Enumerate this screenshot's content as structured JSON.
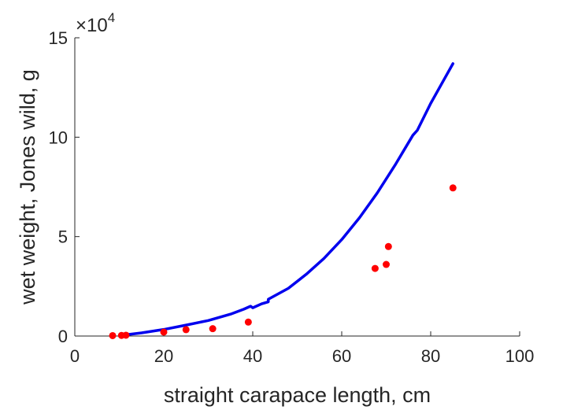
{
  "chart_data": {
    "type": "scatter",
    "xlabel": "straight carapace length, cm",
    "ylabel": "wet weight, Jones wild, g",
    "y_multiplier": "×10",
    "y_multiplier_exponent": "4",
    "xlim": [
      0,
      100
    ],
    "ylim": [
      0,
      15
    ],
    "x_ticks": [
      0,
      20,
      40,
      60,
      80,
      100
    ],
    "y_ticks": [
      0,
      5,
      10,
      15
    ],
    "grid": false,
    "legend": "none",
    "series": [
      {
        "kind": "points",
        "color": "#ff0000",
        "x": [
          8.5,
          10.5,
          11.5,
          20,
          25,
          31,
          39,
          67.5,
          70,
          70.5,
          85
        ],
        "y": [
          0.02,
          0.03,
          0.04,
          0.2,
          0.32,
          0.37,
          0.7,
          3.4,
          3.6,
          4.5,
          7.45
        ]
      },
      {
        "kind": "line",
        "color": "#0000ee",
        "x": [
          11,
          15,
          20,
          25,
          30,
          35,
          38,
          39.5,
          40,
          42,
          43.5,
          43.5,
          48,
          52,
          56,
          60,
          64,
          68,
          72,
          76,
          77,
          80,
          83,
          85
        ],
        "y": [
          0.05,
          0.16,
          0.33,
          0.55,
          0.78,
          1.1,
          1.35,
          1.5,
          1.42,
          1.62,
          1.72,
          1.85,
          2.4,
          3.1,
          3.9,
          4.85,
          5.95,
          7.2,
          8.6,
          10.1,
          10.35,
          11.7,
          12.9,
          13.7
        ]
      }
    ]
  }
}
